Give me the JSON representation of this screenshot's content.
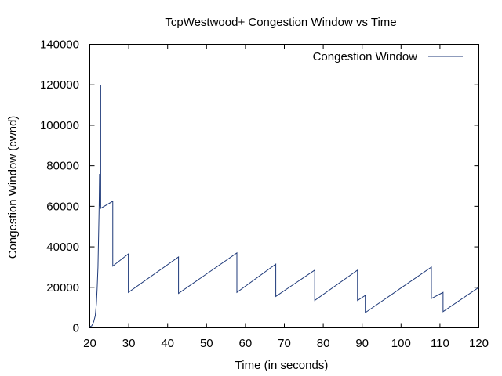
{
  "chart_data": {
    "type": "line",
    "title": "TcpWestwood+ Congestion Window vs Time",
    "xlabel": "Time (in seconds)",
    "ylabel": "Congestion Window (cwnd)",
    "xlim": [
      20,
      120
    ],
    "ylim": [
      0,
      140000
    ],
    "xticks": [
      20,
      30,
      40,
      50,
      60,
      70,
      80,
      90,
      100,
      110,
      120
    ],
    "yticks": [
      0,
      20000,
      40000,
      60000,
      80000,
      100000,
      120000,
      140000
    ],
    "grid": false,
    "legend": "top-right",
    "series": [
      {
        "name": "Congestion Window",
        "color": "#1f3a7a",
        "points": [
          [
            20.0,
            500
          ],
          [
            20.5,
            1000
          ],
          [
            21.0,
            3000
          ],
          [
            21.4,
            6000
          ],
          [
            21.7,
            12000
          ],
          [
            21.9,
            20000
          ],
          [
            22.1,
            30000
          ],
          [
            22.2,
            40000
          ],
          [
            22.3,
            50000
          ],
          [
            22.4,
            60000
          ],
          [
            22.5,
            76000
          ],
          [
            22.5,
            60000
          ],
          [
            22.6,
            65000
          ],
          [
            22.65,
            80000
          ],
          [
            22.7,
            100000
          ],
          [
            22.8,
            120000
          ],
          [
            22.8,
            59000
          ],
          [
            25.9,
            62500
          ],
          [
            25.9,
            30500
          ],
          [
            29.9,
            36500
          ],
          [
            29.9,
            17500
          ],
          [
            42.8,
            35000
          ],
          [
            42.8,
            17000
          ],
          [
            57.8,
            37000
          ],
          [
            57.8,
            17500
          ],
          [
            67.8,
            31500
          ],
          [
            67.8,
            15500
          ],
          [
            77.8,
            28500
          ],
          [
            77.8,
            13500
          ],
          [
            88.8,
            28500
          ],
          [
            88.8,
            13500
          ],
          [
            90.8,
            16000
          ],
          [
            90.8,
            7500
          ],
          [
            107.8,
            30000
          ],
          [
            107.8,
            14500
          ],
          [
            110.8,
            17500
          ],
          [
            110.8,
            8000
          ],
          [
            120.0,
            20000
          ]
        ]
      }
    ]
  }
}
